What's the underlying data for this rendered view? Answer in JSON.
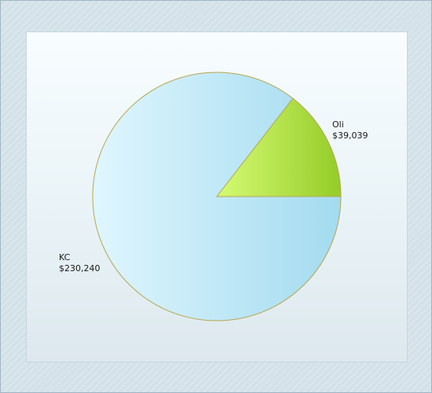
{
  "chart_data": {
    "type": "pie",
    "title": "",
    "slices": [
      {
        "label": "KC",
        "value_label": "$230,240",
        "value": 230240,
        "color_start": "#dff6ff",
        "color_end": "#a3dbef"
      },
      {
        "label": "Oli",
        "value_label": "$39,039",
        "value": 39039,
        "color_start": "#d6fa74",
        "color_end": "#94cc28"
      }
    ],
    "start_angle_deg": 0,
    "direction": "counterclockwise",
    "legend": "none",
    "border_color": "#b8a650"
  }
}
